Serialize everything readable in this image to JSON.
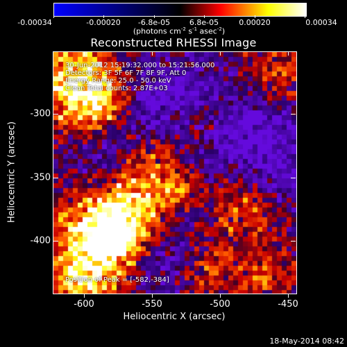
{
  "colorbar": {
    "tick_labels": [
      "-0.00034",
      "-0.00020",
      "-6.8e-05",
      "6.8e-05",
      "0.00020",
      "0.00034"
    ],
    "units_text": "(photons cm",
    "units_exp1": "-2",
    "units_mid1": " s",
    "units_exp2": "-1",
    "units_mid2": " asec",
    "units_exp3": "-2",
    "units_end": ")",
    "colors": [
      "#0000ff",
      "#000000",
      "#ff0000",
      "#ffff00",
      "#ffffff"
    ]
  },
  "title": "Reconstructed RHESSI Image",
  "overlay": {
    "line1": "30-Jun-2012 15:19:32.000 to 15:21:56.000",
    "line2": "Detectors: 3F 5F 6F 7F 8F 9F, Att 0",
    "line3": "Energy Range: 25.0 - 50.0 keV",
    "line4": "Clean     Total counts: 2.87E+03",
    "peak": "Position of Peak = [-582,-384]"
  },
  "axes": {
    "x_title": "Heliocentric X (arcsec)",
    "y_title": "Heliocentric Y (arcsec)",
    "x_tick_labels": [
      "-600",
      "-550",
      "-500",
      "-450"
    ],
    "y_tick_labels": [
      "-300",
      "-350",
      "-400"
    ]
  },
  "footer": {
    "date": "18-May-2014 08:42"
  }
}
